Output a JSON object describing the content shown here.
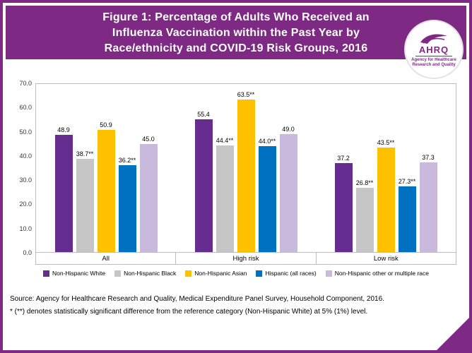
{
  "header": {
    "title_lines": [
      "Figure 1: Percentage of Adults Who Received an",
      "Influenza Vaccination within the Past Year by",
      "Race/ethnicity and COVID-19 Risk Groups, 2016"
    ],
    "logo": {
      "acronym": "AHRQ",
      "tagline": "Agency for Healthcare Research and Quality"
    }
  },
  "colors": {
    "brand_purple": "#7e2a84",
    "axis_gray": "#bdbdbd"
  },
  "chart_data": {
    "type": "bar",
    "categories": [
      "All",
      "High risk",
      "Low risk"
    ],
    "series": [
      {
        "name": "Non-Hispanic White",
        "color": "#662d91",
        "values": [
          48.9,
          55.4,
          37.2
        ],
        "labels": [
          "48.9",
          "55.4",
          "37.2"
        ]
      },
      {
        "name": "Non-Hispanic Black",
        "color": "#c6c6c6",
        "values": [
          38.7,
          44.4,
          26.8
        ],
        "labels": [
          "38.7**",
          "44.4**",
          "26.8**"
        ]
      },
      {
        "name": "Non-Hispanic Asian",
        "color": "#ffc000",
        "values": [
          50.9,
          63.5,
          43.5
        ],
        "labels": [
          "50.9",
          "63.5**",
          "43.5**"
        ]
      },
      {
        "name": "Hispanic (all races)",
        "color": "#0070c0",
        "values": [
          36.2,
          44.0,
          27.3
        ],
        "labels": [
          "36.2**",
          "44.0**",
          "27.3**"
        ]
      },
      {
        "name": "Non-Hispanic other or multiple race",
        "color": "#c9b9dd",
        "values": [
          45.0,
          49.0,
          37.3
        ],
        "labels": [
          "45.0",
          "49.0",
          "37.3"
        ]
      }
    ],
    "title": "Percentage of Adults Who Received an Influenza Vaccination within the Past Year by Race/ethnicity and COVID-19 Risk Groups, 2016",
    "xlabel": "",
    "ylabel": "",
    "ylim": [
      0,
      70
    ],
    "ytick_step": 10,
    "yticks": [
      "0.0",
      "10.0",
      "20.0",
      "30.0",
      "40.0",
      "50.0",
      "60.0",
      "70.0"
    ],
    "grid": false,
    "legend_position": "bottom"
  },
  "footer": {
    "source": "Source: Agency for Healthcare Research and Quality, Medical Expenditure Panel Survey, Household Component, 2016.",
    "footnote": "* (**) denotes statistically significant difference from the reference category (Non-Hispanic White) at 5% (1%) level."
  }
}
